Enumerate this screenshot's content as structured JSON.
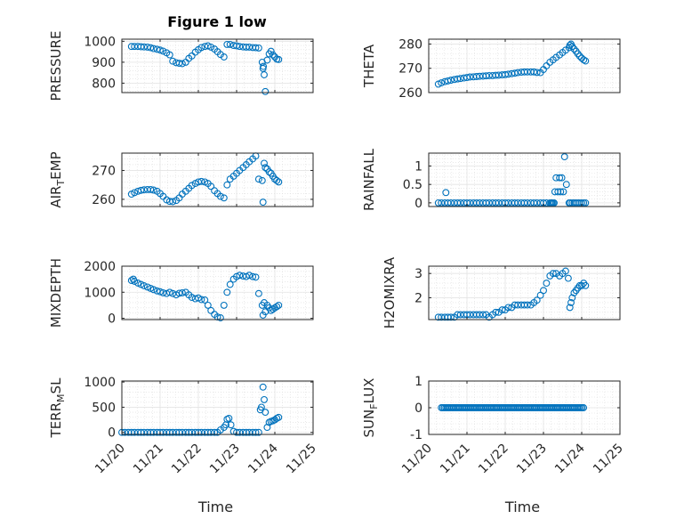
{
  "figure": {
    "title": "Figure 1 low",
    "marker_color": "#0072bd",
    "x_tick_labels": [
      "11/20",
      "11/21",
      "11/22",
      "11/23",
      "11/24",
      "11/25"
    ]
  },
  "chart_data": [
    {
      "type": "scatter",
      "title": "Figure 1 low",
      "ylabel": "PRESSURE",
      "xlabel": "",
      "ylim": [
        755,
        1010
      ],
      "yticks": [
        800,
        900,
        1000
      ],
      "xticks_visible": false,
      "grid": true,
      "column": "left",
      "row": 0,
      "x": [
        20.25,
        20.33,
        20.42,
        20.5,
        20.58,
        20.67,
        20.75,
        20.83,
        20.92,
        21.0,
        21.08,
        21.17,
        21.25,
        21.33,
        21.42,
        21.5,
        21.58,
        21.67,
        21.75,
        21.83,
        21.92,
        22.0,
        22.08,
        22.17,
        22.25,
        22.33,
        22.42,
        22.5,
        22.58,
        22.67,
        22.75,
        22.83,
        22.92,
        23.0,
        23.08,
        23.17,
        23.25,
        23.33,
        23.42,
        23.5,
        23.58,
        23.67,
        23.69,
        23.7,
        23.72,
        23.75,
        23.8,
        23.85,
        23.9,
        23.95,
        24.0,
        24.05,
        24.1
      ],
      "y": [
        975,
        975,
        975,
        974,
        973,
        972,
        969,
        965,
        962,
        958,
        953,
        945,
        935,
        905,
        898,
        895,
        893,
        900,
        918,
        930,
        948,
        960,
        970,
        975,
        978,
        972,
        963,
        950,
        937,
        925,
        985,
        985,
        980,
        978,
        975,
        973,
        972,
        972,
        970,
        969,
        968,
        900,
        870,
        880,
        840,
        760,
        910,
        940,
        952,
        935,
        925,
        915,
        913
      ],
      "series_names": []
    },
    {
      "type": "scatter",
      "title": "",
      "ylabel": "THETA",
      "xlabel": "",
      "ylim": [
        260,
        282
      ],
      "yticks": [
        260,
        270,
        280
      ],
      "xticks_visible": false,
      "grid": true,
      "column": "right",
      "row": 0,
      "x": [
        20.25,
        20.33,
        20.42,
        20.5,
        20.58,
        20.67,
        20.75,
        20.83,
        20.92,
        21.0,
        21.08,
        21.17,
        21.25,
        21.33,
        21.42,
        21.5,
        21.58,
        21.67,
        21.75,
        21.83,
        21.92,
        22.0,
        22.08,
        22.17,
        22.25,
        22.33,
        22.42,
        22.5,
        22.58,
        22.67,
        22.75,
        22.83,
        22.92,
        23.0,
        23.08,
        23.17,
        23.25,
        23.33,
        23.42,
        23.5,
        23.58,
        23.67,
        23.69,
        23.72,
        23.75,
        23.8,
        23.85,
        23.9,
        23.95,
        24.0,
        24.05,
        24.1
      ],
      "y": [
        263.5,
        264.0,
        264.5,
        264.8,
        265.1,
        265.4,
        265.6,
        265.8,
        266.0,
        266.2,
        266.4,
        266.5,
        266.6,
        266.7,
        266.8,
        266.9,
        267.0,
        267.0,
        267.1,
        267.2,
        267.3,
        267.4,
        267.6,
        267.8,
        268.0,
        268.2,
        268.4,
        268.5,
        268.5,
        268.5,
        268.5,
        268.3,
        268.2,
        269.5,
        271.0,
        272.5,
        273.5,
        274.5,
        275.5,
        276.5,
        277.5,
        278.5,
        279.5,
        280.0,
        279.0,
        278.0,
        277.0,
        276.0,
        275.0,
        274.2,
        273.5,
        273.0
      ],
      "series_names": []
    },
    {
      "type": "scatter",
      "title": "",
      "ylabel": "AIR_TEMP",
      "xlabel": "",
      "ylim": [
        257.5,
        276
      ],
      "yticks": [
        260,
        270
      ],
      "xticks_visible": false,
      "grid": true,
      "column": "left",
      "row": 1,
      "x": [
        20.25,
        20.33,
        20.42,
        20.5,
        20.58,
        20.67,
        20.75,
        20.83,
        20.92,
        21.0,
        21.08,
        21.17,
        21.25,
        21.33,
        21.42,
        21.5,
        21.58,
        21.67,
        21.75,
        21.83,
        21.92,
        22.0,
        22.08,
        22.17,
        22.25,
        22.33,
        22.42,
        22.5,
        22.58,
        22.67,
        22.75,
        22.83,
        22.92,
        23.0,
        23.08,
        23.17,
        23.25,
        23.33,
        23.42,
        23.5,
        23.58,
        23.67,
        23.69,
        23.72,
        23.75,
        23.8,
        23.85,
        23.9,
        23.95,
        24.0,
        24.05,
        24.1
      ],
      "y": [
        261.8,
        262.3,
        262.8,
        263.1,
        263.3,
        263.4,
        263.4,
        263.2,
        262.8,
        262.0,
        261.0,
        259.8,
        259.3,
        259.2,
        259.6,
        260.5,
        261.8,
        262.8,
        263.8,
        264.8,
        265.5,
        266.0,
        266.2,
        266.0,
        265.5,
        264.5,
        263.0,
        262.0,
        261.0,
        260.5,
        265.0,
        267.0,
        268.0,
        269.0,
        270.0,
        271.0,
        272.0,
        273.0,
        274.0,
        275.0,
        267.0,
        266.5,
        259.0,
        272.5,
        271.0,
        270.5,
        269.5,
        269.0,
        268.0,
        267.0,
        266.5,
        266.0
      ],
      "series_names": []
    },
    {
      "type": "scatter",
      "title": "",
      "ylabel": "RAINFALL",
      "xlabel": "",
      "ylim": [
        -0.1,
        1.35
      ],
      "yticks": [
        0,
        0.5,
        1
      ],
      "yticklabels": [
        "0",
        "0.5",
        "1"
      ],
      "xticks_visible": false,
      "grid": true,
      "column": "right",
      "row": 1,
      "x": [
        20.25,
        20.33,
        20.42,
        20.45,
        20.5,
        20.58,
        20.67,
        20.75,
        20.83,
        20.92,
        21.0,
        21.08,
        21.17,
        21.25,
        21.33,
        21.42,
        21.5,
        21.58,
        21.67,
        21.75,
        21.83,
        21.92,
        22.0,
        22.08,
        22.17,
        22.25,
        22.33,
        22.42,
        22.5,
        22.58,
        22.67,
        22.75,
        22.83,
        22.92,
        23.0,
        23.08,
        23.17,
        23.2,
        23.22,
        23.25,
        23.28,
        23.3,
        23.33,
        23.38,
        23.42,
        23.45,
        23.48,
        23.52,
        23.55,
        23.6,
        23.67,
        23.7,
        23.75,
        23.8,
        23.85,
        23.9,
        23.95,
        24.0,
        24.05,
        24.1
      ],
      "y": [
        0,
        0,
        0,
        0.28,
        0,
        0,
        0,
        0,
        0,
        0,
        0,
        0,
        0,
        0,
        0,
        0,
        0,
        0,
        0,
        0,
        0,
        0,
        0,
        0,
        0,
        0,
        0,
        0,
        0,
        0,
        0,
        0,
        0,
        0,
        0,
        0,
        0,
        0,
        0,
        0,
        0,
        0.3,
        0.68,
        0.3,
        0.68,
        0.3,
        0.68,
        0.3,
        1.25,
        0.5,
        0,
        0,
        0,
        0,
        0,
        0,
        0,
        0,
        0,
        0
      ],
      "series_names": []
    },
    {
      "type": "scatter",
      "title": "",
      "ylabel": "MIXDEPTH",
      "xlabel": "",
      "ylim": [
        -50,
        2000
      ],
      "yticks": [
        0,
        1000,
        2000
      ],
      "xticks_visible": false,
      "grid": true,
      "column": "left",
      "row": 2,
      "x": [
        20.25,
        20.3,
        20.33,
        20.42,
        20.5,
        20.58,
        20.67,
        20.75,
        20.83,
        20.92,
        21.0,
        21.08,
        21.17,
        21.25,
        21.33,
        21.42,
        21.5,
        21.58,
        21.67,
        21.75,
        21.83,
        21.92,
        22.0,
        22.08,
        22.17,
        22.25,
        22.33,
        22.42,
        22.5,
        22.58,
        22.67,
        22.75,
        22.83,
        22.92,
        23.0,
        23.08,
        23.17,
        23.25,
        23.33,
        23.42,
        23.5,
        23.58,
        23.67,
        23.69,
        23.72,
        23.75,
        23.8,
        23.85,
        23.9,
        23.95,
        24.0,
        24.05,
        24.1
      ],
      "y": [
        1450,
        1500,
        1420,
        1350,
        1300,
        1250,
        1200,
        1150,
        1100,
        1050,
        1020,
        980,
        950,
        1000,
        950,
        900,
        960,
        980,
        1000,
        900,
        800,
        750,
        780,
        720,
        700,
        500,
        300,
        150,
        50,
        20,
        500,
        1000,
        1300,
        1500,
        1600,
        1650,
        1620,
        1600,
        1650,
        1600,
        1580,
        950,
        500,
        120,
        600,
        250,
        500,
        400,
        300,
        350,
        400,
        450,
        500
      ],
      "series_names": []
    },
    {
      "type": "scatter",
      "title": "",
      "ylabel": "H2OMIXRA",
      "xlabel": "",
      "ylim": [
        1.1,
        3.3
      ],
      "yticks": [
        2,
        3
      ],
      "xticks_visible": false,
      "grid": true,
      "column": "right",
      "row": 2,
      "x": [
        20.25,
        20.33,
        20.42,
        20.5,
        20.58,
        20.67,
        20.75,
        20.83,
        20.92,
        21.0,
        21.08,
        21.17,
        21.25,
        21.33,
        21.42,
        21.5,
        21.58,
        21.67,
        21.75,
        21.83,
        21.92,
        22.0,
        22.08,
        22.17,
        22.25,
        22.33,
        22.42,
        22.5,
        22.58,
        22.67,
        22.75,
        22.83,
        22.92,
        23.0,
        23.08,
        23.17,
        23.25,
        23.33,
        23.42,
        23.5,
        23.58,
        23.65,
        23.69,
        23.72,
        23.75,
        23.8,
        23.85,
        23.9,
        23.95,
        24.0,
        24.05,
        24.1
      ],
      "y": [
        1.2,
        1.2,
        1.2,
        1.2,
        1.2,
        1.2,
        1.3,
        1.3,
        1.3,
        1.3,
        1.3,
        1.3,
        1.3,
        1.3,
        1.3,
        1.3,
        1.2,
        1.3,
        1.4,
        1.4,
        1.5,
        1.5,
        1.6,
        1.6,
        1.7,
        1.7,
        1.7,
        1.7,
        1.7,
        1.7,
        1.8,
        1.9,
        2.1,
        2.3,
        2.6,
        2.9,
        3.0,
        3.0,
        2.9,
        3.0,
        3.1,
        2.8,
        1.6,
        1.8,
        2.0,
        2.2,
        2.3,
        2.4,
        2.5,
        2.5,
        2.6,
        2.5
      ],
      "series_names": []
    },
    {
      "type": "scatter",
      "title": "",
      "ylabel": "TERR_MSL",
      "xlabel": "Time",
      "ylim": [
        -40,
        1020
      ],
      "yticks": [
        0,
        500,
        1000
      ],
      "xticks_visible": true,
      "grid": true,
      "column": "left",
      "row": 3,
      "x": [
        20.0,
        20.08,
        20.17,
        20.25,
        20.33,
        20.42,
        20.5,
        20.58,
        20.67,
        20.75,
        20.83,
        20.92,
        21.0,
        21.08,
        21.17,
        21.25,
        21.33,
        21.42,
        21.5,
        21.58,
        21.67,
        21.75,
        21.83,
        21.92,
        22.0,
        22.08,
        22.17,
        22.25,
        22.33,
        22.42,
        22.5,
        22.58,
        22.67,
        22.72,
        22.75,
        22.8,
        22.85,
        22.92,
        23.0,
        23.08,
        23.17,
        23.25,
        23.33,
        23.42,
        23.5,
        23.58,
        23.62,
        23.65,
        23.69,
        23.72,
        23.75,
        23.8,
        23.85,
        23.9,
        23.95,
        24.0,
        24.05,
        24.1
      ],
      "y": [
        0,
        0,
        0,
        0,
        0,
        0,
        0,
        0,
        0,
        0,
        0,
        0,
        0,
        0,
        0,
        0,
        0,
        0,
        0,
        0,
        0,
        0,
        0,
        0,
        0,
        0,
        0,
        0,
        0,
        0,
        0,
        50,
        100,
        150,
        260,
        280,
        150,
        20,
        0,
        0,
        0,
        0,
        0,
        0,
        0,
        0,
        450,
        500,
        900,
        650,
        400,
        100,
        200,
        220,
        230,
        250,
        280,
        300
      ],
      "series_names": []
    },
    {
      "type": "scatter",
      "title": "",
      "ylabel": "SUN_FLUX",
      "xlabel": "Time",
      "ylim": [
        -1,
        1
      ],
      "yticks": [
        -1,
        0,
        1
      ],
      "xticks_visible": true,
      "grid": true,
      "column": "right",
      "row": 3,
      "x_range": [
        20.33,
        24.08
      ],
      "x_step": 0.04,
      "y_constant": 0,
      "series_names": []
    }
  ]
}
